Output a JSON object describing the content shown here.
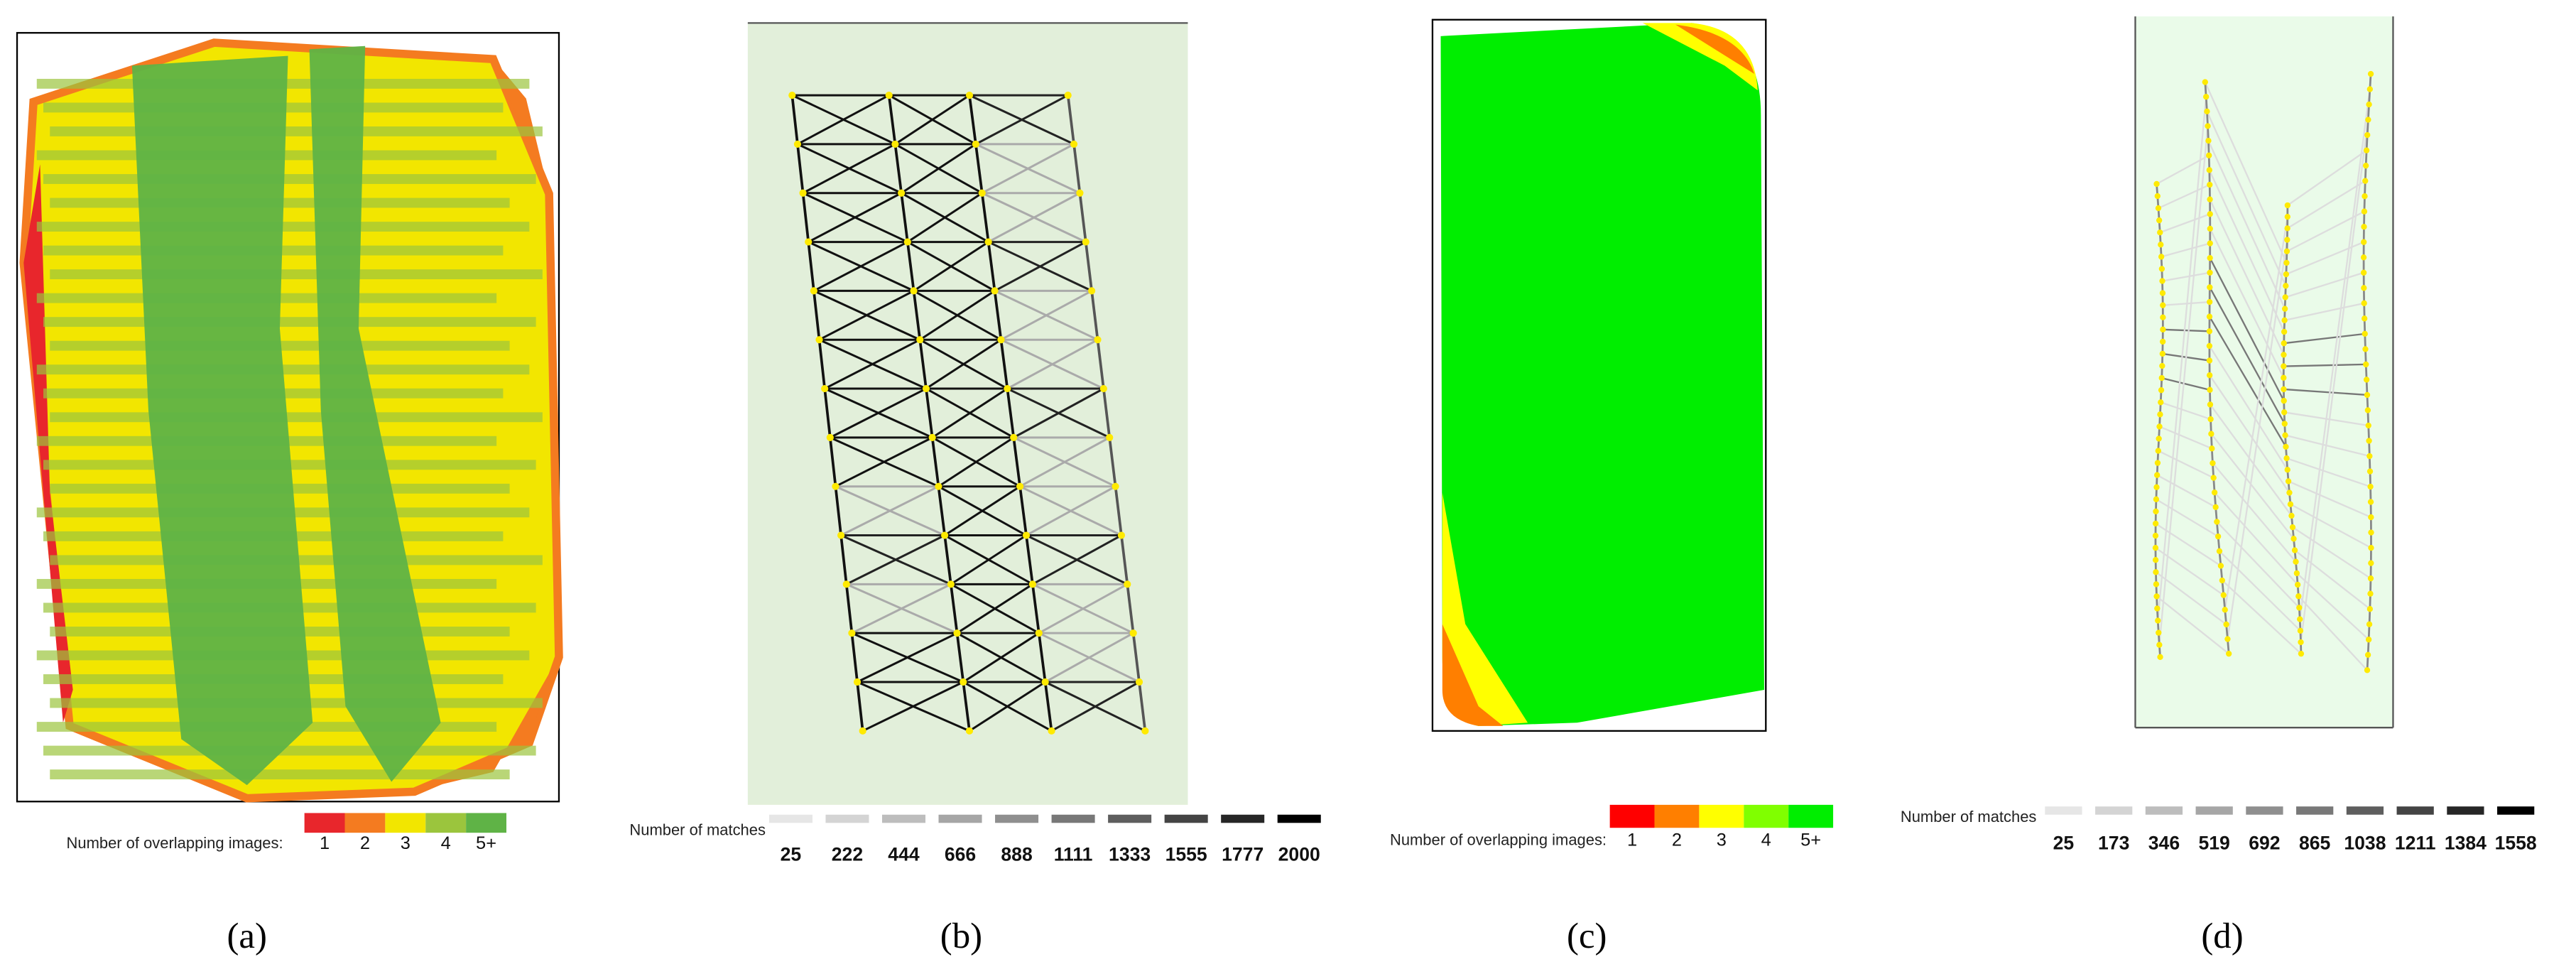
{
  "panels": [
    {
      "caption": "(a)",
      "legend_title": "Number of overlapping images:",
      "legend_labels": [
        "1",
        "2",
        "3",
        "4",
        "5+"
      ],
      "legend_colors": [
        "#e8262c",
        "#f47b20",
        "#f2e600",
        "#9bc53d",
        "#5fb346"
      ]
    },
    {
      "caption": "(b)",
      "legend_title": "Number of matches",
      "legend_labels": [
        "25",
        "222",
        "444",
        "666",
        "888",
        "1111",
        "1333",
        "1555",
        "1777",
        "2000"
      ],
      "legend_colors": [
        "#e6e6e6",
        "#d4d4d4",
        "#bdbdbd",
        "#a6a6a6",
        "#8f8f8f",
        "#787878",
        "#5e5e5e",
        "#444444",
        "#262626",
        "#000000"
      ]
    },
    {
      "caption": "(c)",
      "legend_title": "Number of overlapping images:",
      "legend_labels": [
        "1",
        "2",
        "3",
        "4",
        "5+"
      ],
      "legend_colors": [
        "#ff0000",
        "#ff7f00",
        "#ffff00",
        "#80ff00",
        "#00ee00"
      ]
    },
    {
      "caption": "(d)",
      "legend_title": "Number of matches",
      "legend_labels": [
        "25",
        "173",
        "346",
        "519",
        "692",
        "865",
        "1038",
        "1211",
        "1384",
        "1558"
      ],
      "legend_colors": [
        "#e6e6e6",
        "#d4d4d4",
        "#bdbdbd",
        "#a6a6a6",
        "#8f8f8f",
        "#787878",
        "#5e5e5e",
        "#444444",
        "#262626",
        "#000000"
      ]
    }
  ]
}
